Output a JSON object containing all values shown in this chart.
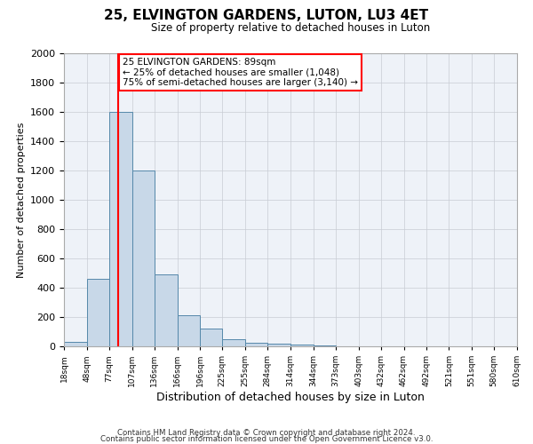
{
  "title": "25, ELVINGTON GARDENS, LUTON, LU3 4ET",
  "subtitle": "Size of property relative to detached houses in Luton",
  "xlabel": "Distribution of detached houses by size in Luton",
  "ylabel": "Number of detached properties",
  "bar_color": "#c8d8e8",
  "bar_edge_color": "#5588aa",
  "background_color": "#eef2f8",
  "grid_color": "#c8ccd4",
  "red_line_x": 89,
  "annotation_title": "25 ELVINGTON GARDENS: 89sqm",
  "annotation_line1": "← 25% of detached houses are smaller (1,048)",
  "annotation_line2": "75% of semi-detached houses are larger (3,140) →",
  "bin_edges": [
    18,
    48,
    77,
    107,
    136,
    166,
    196,
    225,
    255,
    284,
    314,
    344,
    373,
    403,
    432,
    462,
    492,
    521,
    551,
    580,
    610
  ],
  "bar_heights": [
    30,
    460,
    1600,
    1200,
    490,
    210,
    120,
    50,
    25,
    20,
    10,
    5,
    0,
    0,
    0,
    0,
    0,
    0,
    0,
    0
  ],
  "ylim": [
    0,
    2000
  ],
  "yticks": [
    0,
    200,
    400,
    600,
    800,
    1000,
    1200,
    1400,
    1600,
    1800,
    2000
  ],
  "footer1": "Contains HM Land Registry data © Crown copyright and database right 2024.",
  "footer2": "Contains public sector information licensed under the Open Government Licence v3.0."
}
